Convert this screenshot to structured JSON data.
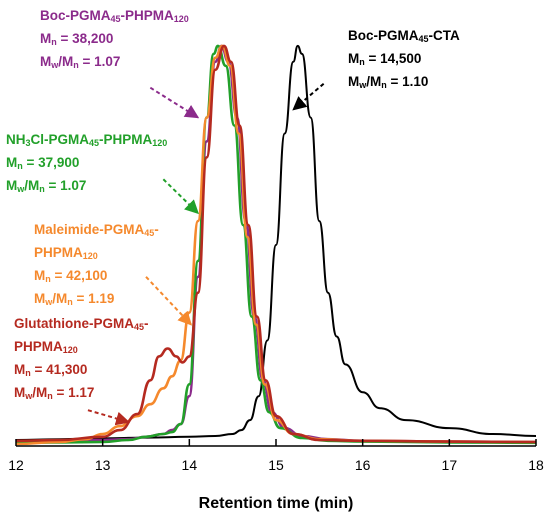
{
  "chart_data": {
    "type": "line",
    "xlabel": "Retention time (min)",
    "ylabel": "",
    "title": "",
    "xlim": [
      12,
      18
    ],
    "ylim": [
      0,
      1.05
    ],
    "xticks": [
      "12",
      "13",
      "14",
      "15",
      "16",
      "17",
      "18"
    ],
    "grid": false,
    "legend": "none",
    "series": [
      {
        "key": "boc_cta",
        "color": "#000000",
        "points": [
          [
            12.0,
            0.01
          ],
          [
            12.5,
            0.012
          ],
          [
            13.0,
            0.014
          ],
          [
            13.5,
            0.016
          ],
          [
            14.0,
            0.018
          ],
          [
            14.3,
            0.02
          ],
          [
            14.5,
            0.025
          ],
          [
            14.6,
            0.035
          ],
          [
            14.7,
            0.06
          ],
          [
            14.8,
            0.12
          ],
          [
            14.9,
            0.26
          ],
          [
            15.0,
            0.5
          ],
          [
            15.1,
            0.78
          ],
          [
            15.2,
            0.96
          ],
          [
            15.25,
            1.0
          ],
          [
            15.3,
            0.98
          ],
          [
            15.4,
            0.82
          ],
          [
            15.5,
            0.56
          ],
          [
            15.6,
            0.38
          ],
          [
            15.7,
            0.27
          ],
          [
            15.8,
            0.2
          ],
          [
            16.0,
            0.13
          ],
          [
            16.2,
            0.09
          ],
          [
            16.5,
            0.06
          ],
          [
            17.0,
            0.04
          ],
          [
            17.5,
            0.025
          ],
          [
            18.0,
            0.02
          ]
        ]
      },
      {
        "key": "boc_pgma_phpma",
        "color": "#8B2B8B",
        "points": [
          [
            12.0,
            0.005
          ],
          [
            12.5,
            0.008
          ],
          [
            13.0,
            0.01
          ],
          [
            13.3,
            0.012
          ],
          [
            13.5,
            0.018
          ],
          [
            13.7,
            0.025
          ],
          [
            13.8,
            0.035
          ],
          [
            13.9,
            0.05
          ],
          [
            14.0,
            0.12
          ],
          [
            14.1,
            0.42
          ],
          [
            14.2,
            0.76
          ],
          [
            14.3,
            0.96
          ],
          [
            14.37,
            1.0
          ],
          [
            14.45,
            0.96
          ],
          [
            14.55,
            0.82
          ],
          [
            14.65,
            0.56
          ],
          [
            14.75,
            0.32
          ],
          [
            14.85,
            0.16
          ],
          [
            14.95,
            0.08
          ],
          [
            15.1,
            0.04
          ],
          [
            15.3,
            0.02
          ],
          [
            15.6,
            0.012
          ],
          [
            16.0,
            0.008
          ],
          [
            17.0,
            0.006
          ],
          [
            18.0,
            0.005
          ]
        ]
      },
      {
        "key": "nh3cl_pgma_phpma",
        "color": "#22A02A",
        "points": [
          [
            12.0,
            0.003
          ],
          [
            12.5,
            0.004
          ],
          [
            13.0,
            0.005
          ],
          [
            13.3,
            0.01
          ],
          [
            13.5,
            0.018
          ],
          [
            13.7,
            0.025
          ],
          [
            13.8,
            0.03
          ],
          [
            13.9,
            0.05
          ],
          [
            14.0,
            0.15
          ],
          [
            14.1,
            0.46
          ],
          [
            14.2,
            0.82
          ],
          [
            14.28,
            0.98
          ],
          [
            14.33,
            1.0
          ],
          [
            14.42,
            0.95
          ],
          [
            14.52,
            0.8
          ],
          [
            14.62,
            0.55
          ],
          [
            14.72,
            0.32
          ],
          [
            14.82,
            0.16
          ],
          [
            14.92,
            0.08
          ],
          [
            15.05,
            0.04
          ],
          [
            15.3,
            0.015
          ],
          [
            15.6,
            0.008
          ],
          [
            16.0,
            0.006
          ],
          [
            17.0,
            0.004
          ],
          [
            18.0,
            0.003
          ]
        ]
      },
      {
        "key": "maleimide_pgma_phpma",
        "color": "#F5892D",
        "points": [
          [
            12.0,
            0.0
          ],
          [
            12.5,
            0.005
          ],
          [
            12.8,
            0.012
          ],
          [
            13.0,
            0.025
          ],
          [
            13.2,
            0.045
          ],
          [
            13.4,
            0.07
          ],
          [
            13.55,
            0.1
          ],
          [
            13.7,
            0.14
          ],
          [
            13.8,
            0.17
          ],
          [
            13.9,
            0.21
          ],
          [
            14.0,
            0.33
          ],
          [
            14.1,
            0.56
          ],
          [
            14.2,
            0.82
          ],
          [
            14.3,
            0.97
          ],
          [
            14.38,
            1.0
          ],
          [
            14.47,
            0.95
          ],
          [
            14.57,
            0.78
          ],
          [
            14.67,
            0.52
          ],
          [
            14.77,
            0.3
          ],
          [
            14.87,
            0.15
          ],
          [
            15.0,
            0.06
          ],
          [
            15.2,
            0.025
          ],
          [
            15.5,
            0.012
          ],
          [
            16.0,
            0.008
          ],
          [
            17.0,
            0.006
          ],
          [
            18.0,
            0.005
          ]
        ]
      },
      {
        "key": "glutathione_pgma_phpma",
        "color": "#B52A20",
        "points": [
          [
            12.0,
            0.008
          ],
          [
            12.5,
            0.01
          ],
          [
            13.0,
            0.018
          ],
          [
            13.2,
            0.035
          ],
          [
            13.4,
            0.075
          ],
          [
            13.55,
            0.16
          ],
          [
            13.65,
            0.22
          ],
          [
            13.75,
            0.24
          ],
          [
            13.85,
            0.22
          ],
          [
            13.92,
            0.205
          ],
          [
            14.0,
            0.22
          ],
          [
            14.1,
            0.38
          ],
          [
            14.2,
            0.72
          ],
          [
            14.3,
            0.94
          ],
          [
            14.4,
            1.0
          ],
          [
            14.48,
            0.96
          ],
          [
            14.58,
            0.8
          ],
          [
            14.68,
            0.55
          ],
          [
            14.78,
            0.32
          ],
          [
            14.88,
            0.16
          ],
          [
            15.0,
            0.07
          ],
          [
            15.2,
            0.025
          ],
          [
            15.5,
            0.01
          ],
          [
            16.0,
            0.008
          ],
          [
            17.0,
            0.006
          ],
          [
            18.0,
            0.005
          ]
        ]
      }
    ],
    "annotations": [
      {
        "key": "boc_pgma_phpma",
        "color": "#8B2B8B",
        "line1": [
          "Boc-PGMA",
          "45",
          "-PHPMA",
          "120"
        ],
        "line2": [
          "M",
          "n",
          " = 38,200"
        ],
        "line3": [
          "M",
          "w",
          "/M",
          "n",
          " = 1.07"
        ],
        "arrow_from": [
          13.55,
          0.895
        ],
        "arrow_to": [
          14.1,
          0.82
        ]
      },
      {
        "key": "nh3cl_pgma_phpma",
        "color": "#22A02A",
        "line1": [
          "NH",
          "3",
          "Cl-PGMA",
          "45",
          "-PHPMA",
          "120"
        ],
        "line2": [
          "M",
          "n",
          " = 37,900"
        ],
        "line3": [
          "M",
          "w",
          "/M",
          "n",
          " = 1.07"
        ],
        "arrow_from": [
          13.7,
          0.665
        ],
        "arrow_to": [
          14.1,
          0.58
        ]
      },
      {
        "key": "maleimide_pgma_phpma",
        "color": "#F5892D",
        "line1": [
          "Maleimide-PGMA",
          "45",
          "-"
        ],
        "line1b": [
          "PHPMA",
          "120"
        ],
        "line2": [
          "M",
          "n",
          " = 42,100"
        ],
        "line3": [
          "M",
          "w",
          "/M",
          "n",
          " = 1.19"
        ],
        "arrow_from": [
          13.5,
          0.42
        ],
        "arrow_to": [
          14.02,
          0.3
        ]
      },
      {
        "key": "glutathione_pgma_phpma",
        "color": "#B52A20",
        "line1": [
          "Glutathione-PGMA",
          "45",
          "-"
        ],
        "line1b": [
          "PHPMA",
          "120"
        ],
        "line2": [
          "M",
          "n",
          " = 41,300"
        ],
        "line3": [
          "M",
          "w",
          "/M",
          "n",
          " = 1.17"
        ],
        "arrow_from": [
          12.83,
          0.085
        ],
        "arrow_to": [
          13.3,
          0.055
        ]
      },
      {
        "key": "boc_cta",
        "color": "#000000",
        "line1": [
          "Boc-PGMA",
          "45",
          "-CTA"
        ],
        "line2": [
          "M",
          "n",
          " = 14,500"
        ],
        "line3": [
          "M",
          "w",
          "/M",
          "n",
          " = 1.10"
        ],
        "arrow_from": [
          15.55,
          0.905
        ],
        "arrow_to": [
          15.2,
          0.84
        ]
      }
    ]
  }
}
